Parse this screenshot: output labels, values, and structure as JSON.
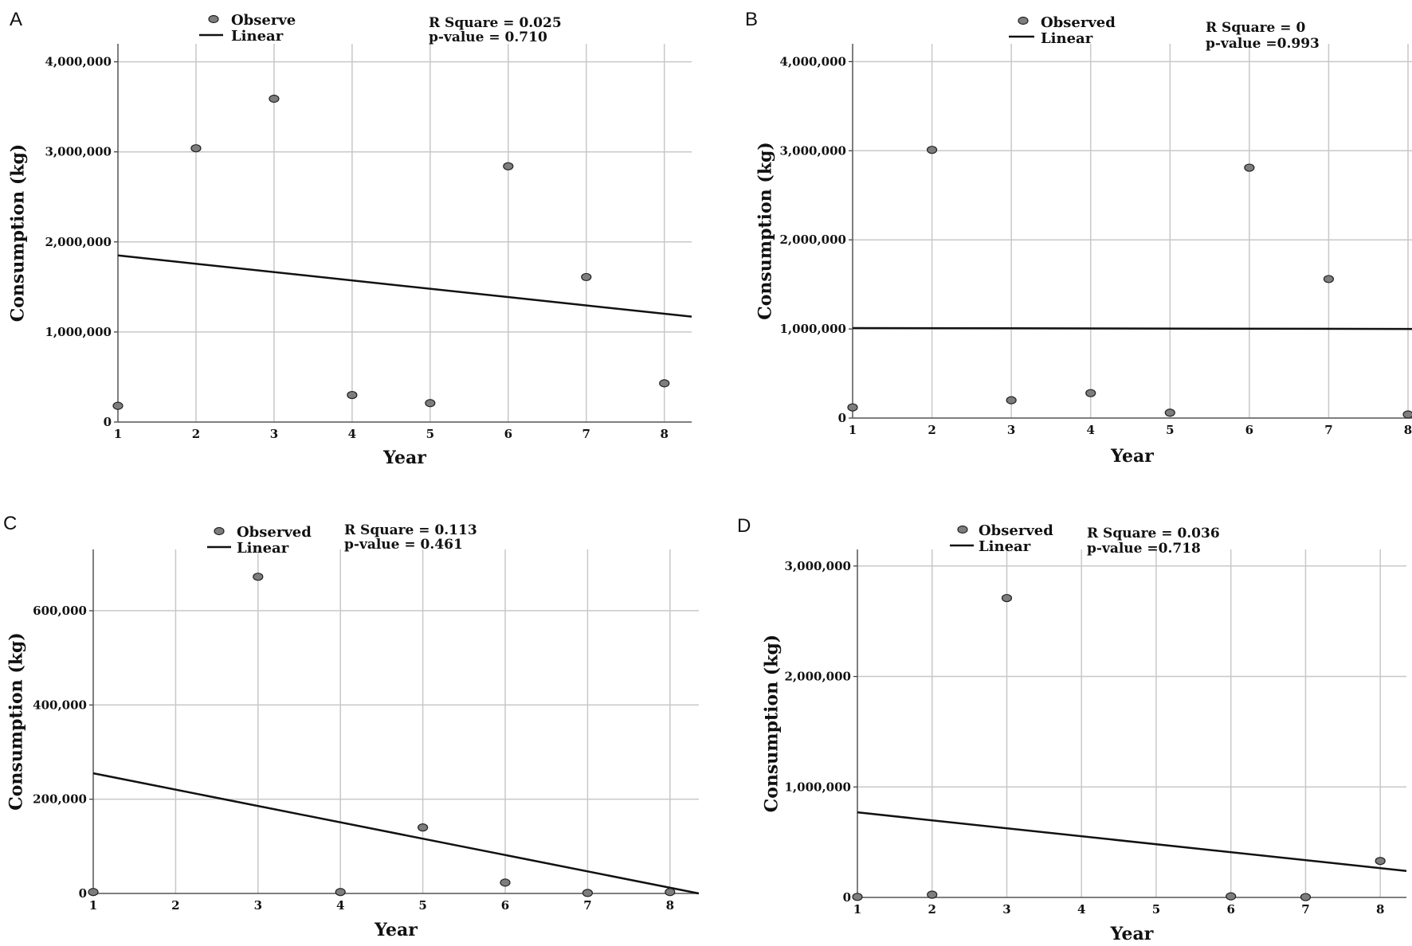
{
  "chart_data": [
    {
      "panel": "A",
      "type": "scatter",
      "xlabel": "Year",
      "ylabel": "Consumption (kg)",
      "x_ticks": [
        "1",
        "2",
        "3",
        "4",
        "5",
        "6",
        "7",
        "8"
      ],
      "y_ticks": [
        "0",
        "1,000,000",
        "2,000,000",
        "3,000,000",
        "4,000,000"
      ],
      "y_tick_values": [
        0,
        1000000,
        2000000,
        3000000,
        4000000
      ],
      "xlim": [
        1,
        8.35
      ],
      "ylim": [
        0,
        4200000
      ],
      "points": [
        {
          "x": 1,
          "y": 180000
        },
        {
          "x": 2,
          "y": 3040000
        },
        {
          "x": 3,
          "y": 3590000
        },
        {
          "x": 4,
          "y": 300000
        },
        {
          "x": 5,
          "y": 210000
        },
        {
          "x": 6,
          "y": 2840000
        },
        {
          "x": 7,
          "y": 1610000
        },
        {
          "x": 8,
          "y": 430000
        }
      ],
      "fit": {
        "x0": 1,
        "y0": 1850000,
        "x1": 8.35,
        "y1": 1170000
      },
      "legend": {
        "observed": "Observe",
        "linear": "Linear"
      },
      "stats": [
        "R Square = 0.025",
        "p-value = 0.710"
      ]
    },
    {
      "panel": "B",
      "type": "scatter",
      "xlabel": "Year",
      "ylabel": "Consumption (kg)",
      "x_ticks": [
        "1",
        "2",
        "3",
        "4",
        "5",
        "6",
        "7",
        "8"
      ],
      "y_ticks": [
        "0",
        "1,000,000",
        "2,000,000",
        "3,000,000",
        "4,000,000"
      ],
      "y_tick_values": [
        0,
        1000000,
        2000000,
        3000000,
        4000000
      ],
      "xlim": [
        1,
        8.05
      ],
      "ylim": [
        0,
        4200000
      ],
      "points": [
        {
          "x": 1,
          "y": 120000
        },
        {
          "x": 2,
          "y": 3010000
        },
        {
          "x": 3,
          "y": 200000
        },
        {
          "x": 4,
          "y": 280000
        },
        {
          "x": 5,
          "y": 60000
        },
        {
          "x": 6,
          "y": 2810000
        },
        {
          "x": 7,
          "y": 1560000
        },
        {
          "x": 8,
          "y": 40000
        }
      ],
      "fit": {
        "x0": 1,
        "y0": 1010000,
        "x1": 8.05,
        "y1": 1000000
      },
      "legend": {
        "observed": "Observed",
        "linear": "Linear"
      },
      "stats": [
        "R Square = 0",
        "p-value =0.993"
      ]
    },
    {
      "panel": "C",
      "type": "scatter",
      "xlabel": "Year",
      "ylabel": "Consumption (kg)",
      "x_ticks": [
        "1",
        "2",
        "3",
        "4",
        "5",
        "6",
        "7",
        "8"
      ],
      "y_ticks": [
        "0",
        "200,000",
        "400,000",
        "600,000"
      ],
      "y_tick_values": [
        0,
        200000,
        400000,
        600000
      ],
      "xlim": [
        1,
        8.35
      ],
      "ylim": [
        0,
        730000
      ],
      "points": [
        {
          "x": 1,
          "y": 3000
        },
        {
          "x": 3,
          "y": 672000
        },
        {
          "x": 4,
          "y": 3000
        },
        {
          "x": 5,
          "y": 140000
        },
        {
          "x": 6,
          "y": 23000
        },
        {
          "x": 7,
          "y": 1000
        },
        {
          "x": 8,
          "y": 3000
        }
      ],
      "fit": {
        "x0": 1,
        "y0": 255000,
        "x1": 8.35,
        "y1": 0
      },
      "legend": {
        "observed": "Observed",
        "linear": "Linear"
      },
      "stats": [
        "R Square = 0.113",
        "p-value =  0.461"
      ]
    },
    {
      "panel": "D",
      "type": "scatter",
      "xlabel": "Year",
      "ylabel": "Consumption (kg)",
      "x_ticks": [
        "1",
        "2",
        "3",
        "4",
        "5",
        "6",
        "7",
        "8"
      ],
      "y_ticks": [
        "0",
        "1,000,000",
        "2,000,000",
        "3,000,000"
      ],
      "y_tick_values": [
        0,
        1000000,
        2000000,
        3000000
      ],
      "xlim": [
        1,
        8.35
      ],
      "ylim": [
        0,
        3150000
      ],
      "points": [
        {
          "x": 1,
          "y": 5000
        },
        {
          "x": 2,
          "y": 25000
        },
        {
          "x": 3,
          "y": 2710000
        },
        {
          "x": 6,
          "y": 10000
        },
        {
          "x": 7,
          "y": 3000
        },
        {
          "x": 8,
          "y": 330000
        }
      ],
      "fit": {
        "x0": 1,
        "y0": 770000,
        "x1": 8.35,
        "y1": 240000
      },
      "legend": {
        "observed": "Observed",
        "linear": "Linear"
      },
      "stats": [
        "R Square = 0.036",
        "p-value =0.718"
      ]
    }
  ]
}
